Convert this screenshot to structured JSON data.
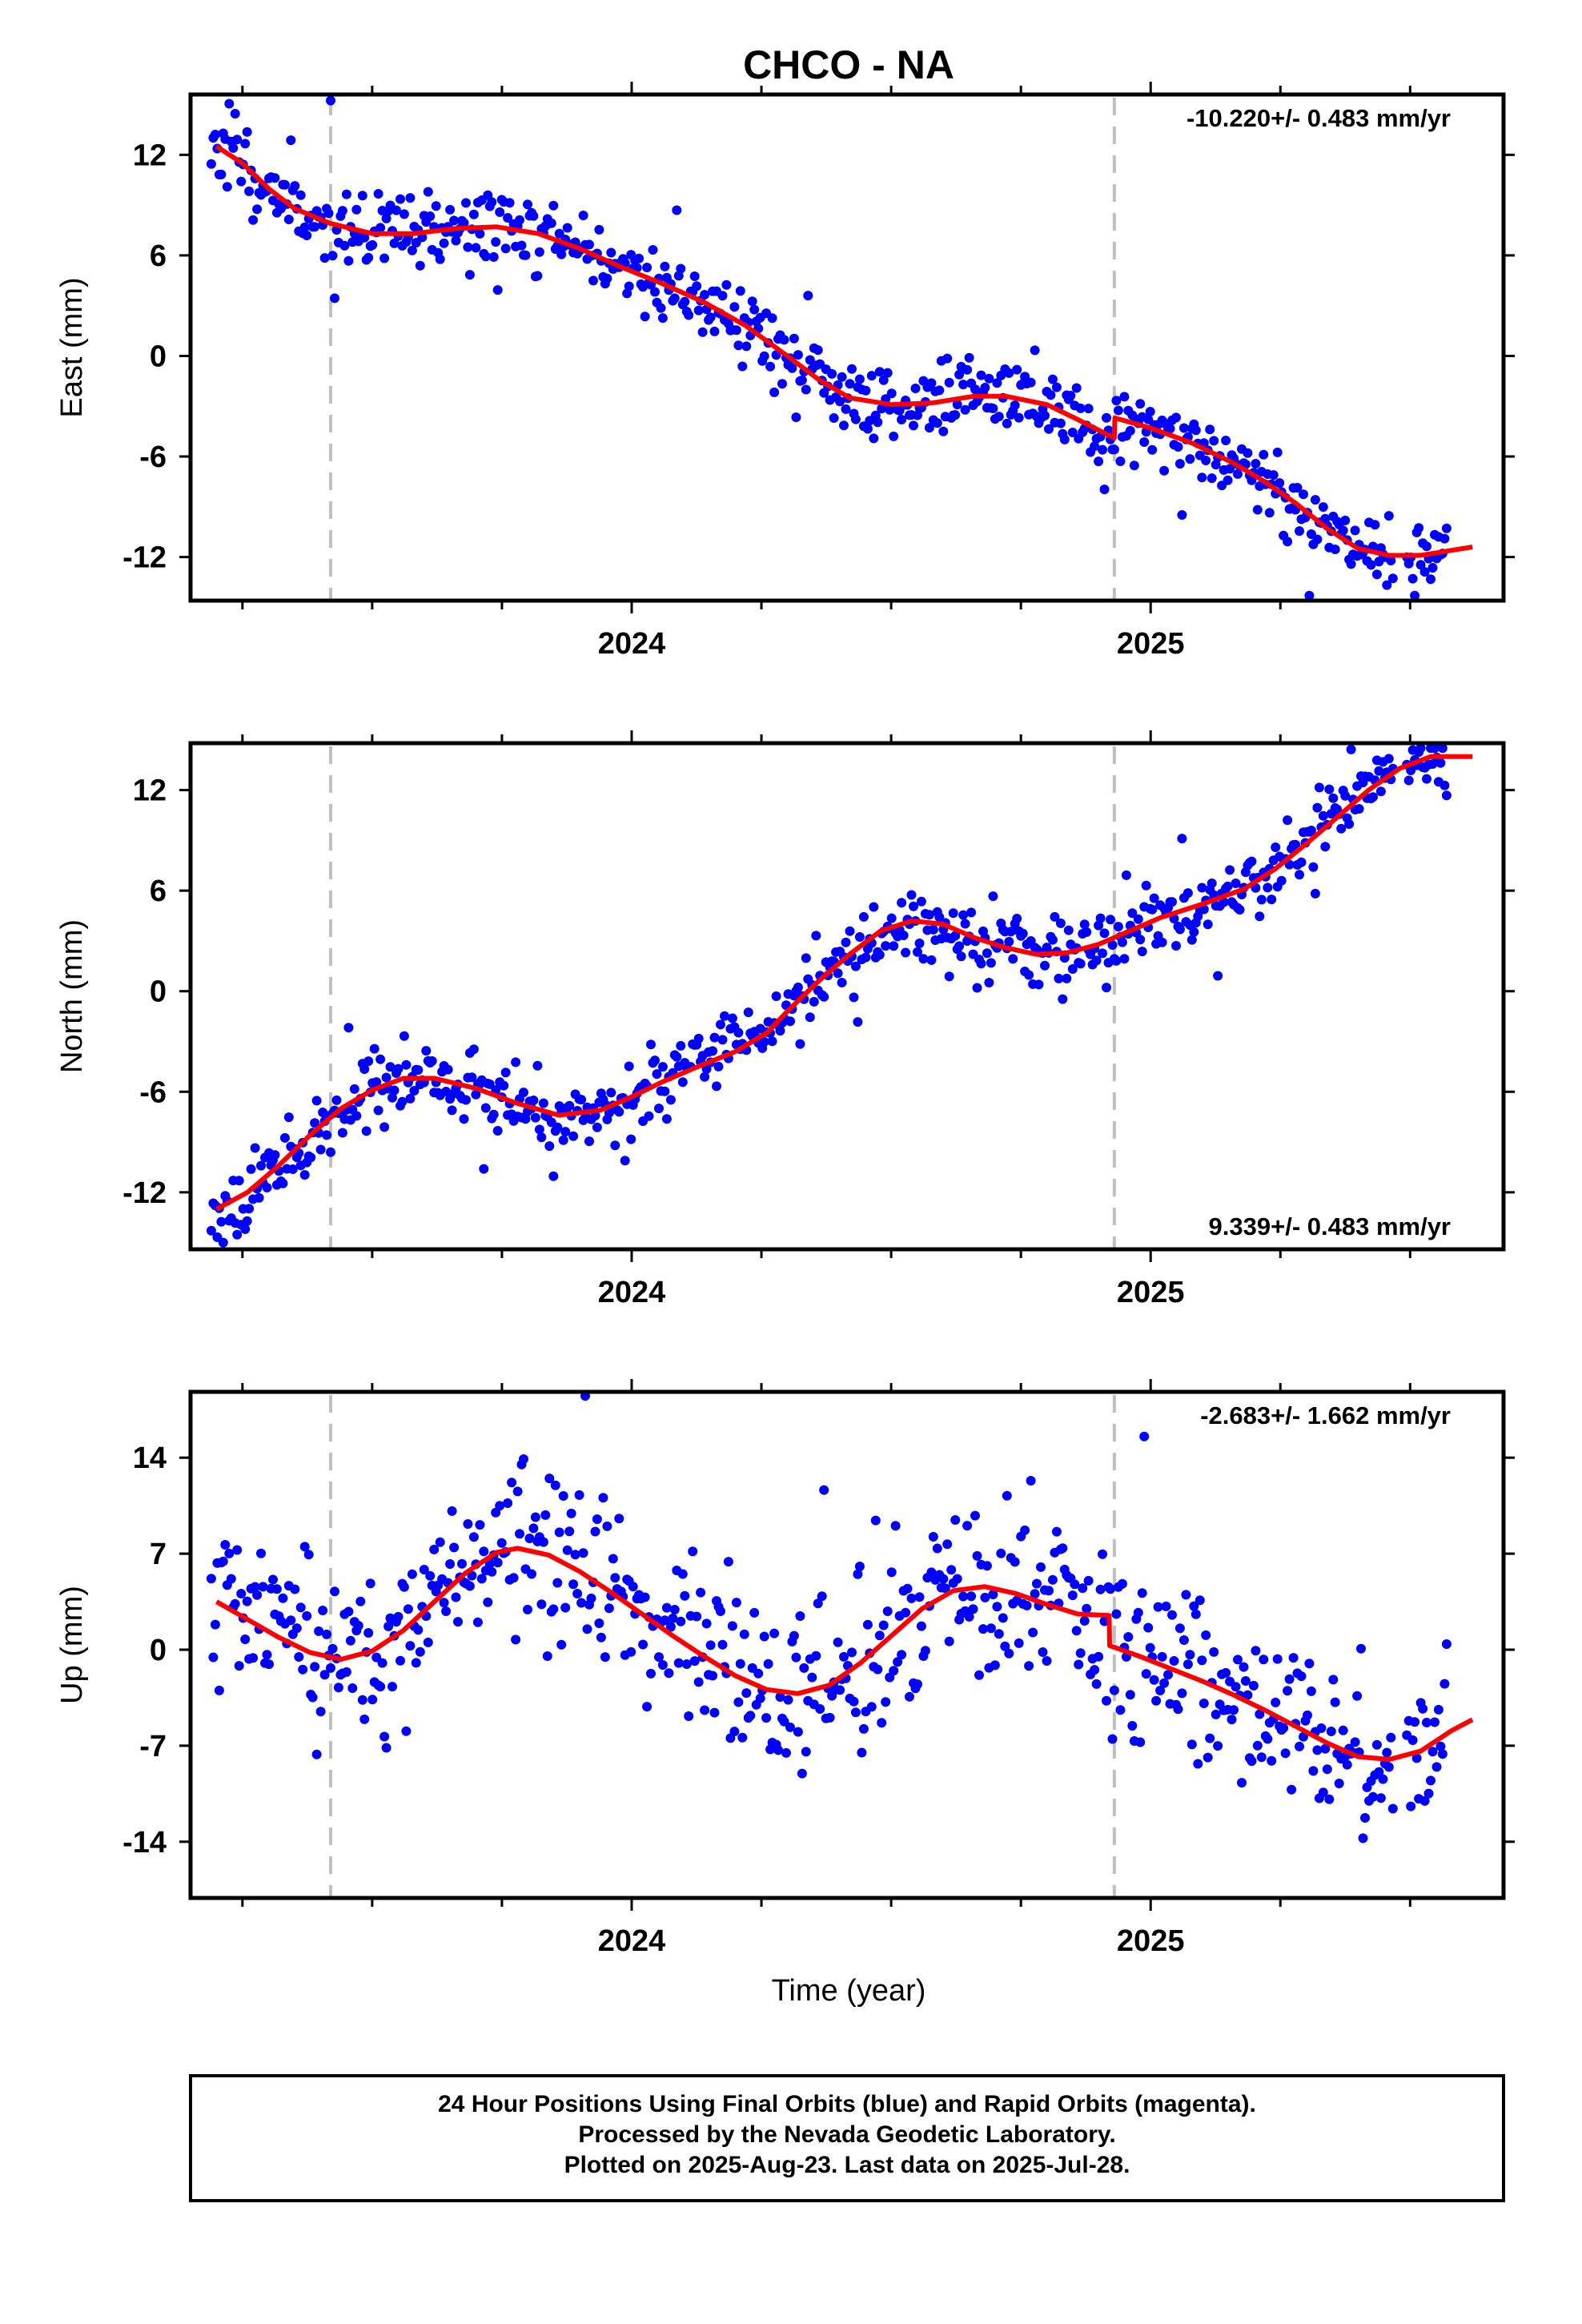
{
  "title": "CHCO - NA",
  "xlabel": "Time (year)",
  "footer": {
    "line1": "24 Hour Positions Using Final Orbits (blue) and Rapid Orbits (magenta).",
    "line2": "Processed by the Nevada Geodetic Laboratory.",
    "line3": "Plotted on 2025-Aug-23. Last data on 2025-Jul-28."
  },
  "colors": {
    "data": "#0000ff",
    "model": "#ff0000",
    "dashed": "#bfbfbf",
    "frame": "#000000"
  },
  "chart_data": [
    {
      "type": "scatter",
      "ylabel": "East (mm)",
      "rate": "-10.220+/- 0.483 mm/yr",
      "rate_position": "top-right",
      "xlim": [
        2023.15,
        2025.68
      ],
      "ylim": [
        -14.6,
        15.6
      ],
      "yticks": [
        12,
        6,
        0,
        -6,
        -12
      ],
      "ytick_labels": [
        "12",
        "6",
        "0",
        "-6",
        "-12"
      ],
      "xtick_labels": [
        "2024",
        "2025"
      ],
      "xticks": [
        2024.0,
        2025.0
      ],
      "offset_lines": [
        2023.42,
        2024.93
      ],
      "model": [
        [
          2023.2,
          12.5
        ],
        [
          2023.25,
          11.5
        ],
        [
          2023.3,
          10.0
        ],
        [
          2023.35,
          8.8
        ],
        [
          2023.42,
          7.9
        ],
        [
          2023.5,
          7.3
        ],
        [
          2023.58,
          7.3
        ],
        [
          2023.66,
          7.6
        ],
        [
          2023.74,
          7.7
        ],
        [
          2023.82,
          7.3
        ],
        [
          2023.9,
          6.4
        ],
        [
          2023.98,
          5.3
        ],
        [
          2024.06,
          4.3
        ],
        [
          2024.14,
          3.2
        ],
        [
          2024.22,
          1.8
        ],
        [
          2024.3,
          0.0
        ],
        [
          2024.36,
          -1.4
        ],
        [
          2024.42,
          -2.5
        ],
        [
          2024.5,
          -2.9
        ],
        [
          2024.58,
          -2.8
        ],
        [
          2024.66,
          -2.4
        ],
        [
          2024.72,
          -2.4
        ],
        [
          2024.8,
          -2.9
        ],
        [
          2024.86,
          -3.8
        ],
        [
          2024.93,
          -4.9
        ],
        [
          2024.931,
          -3.7
        ],
        [
          2025.0,
          -4.3
        ],
        [
          2025.08,
          -5.2
        ],
        [
          2025.16,
          -6.4
        ],
        [
          2025.22,
          -7.5
        ],
        [
          2025.28,
          -8.8
        ],
        [
          2025.34,
          -10.3
        ],
        [
          2025.4,
          -11.5
        ],
        [
          2025.46,
          -11.9
        ],
        [
          2025.52,
          -11.9
        ],
        [
          2025.58,
          -11.6
        ],
        [
          2025.62,
          -11.4
        ]
      ],
      "scatter": {
        "noise": 1.1,
        "outlier_noise": 2.4,
        "seed": 11
      }
    },
    {
      "type": "scatter",
      "ylabel": "North (mm)",
      "rate": "9.339+/- 0.483 mm/yr",
      "rate_position": "bottom-right",
      "xlim": [
        2023.15,
        2025.68
      ],
      "ylim": [
        -15.4,
        14.8
      ],
      "yticks": [
        12,
        6,
        0,
        -6,
        -12
      ],
      "ytick_labels": [
        "12",
        "6",
        "0",
        "-6",
        "-12"
      ],
      "xtick_labels": [
        "2024",
        "2025"
      ],
      "xticks": [
        2024.0,
        2025.0
      ],
      "offset_lines": [
        2023.42,
        2024.93
      ],
      "model": [
        [
          2023.2,
          -13.0
        ],
        [
          2023.26,
          -12.0
        ],
        [
          2023.32,
          -10.4
        ],
        [
          2023.38,
          -8.6
        ],
        [
          2023.44,
          -7.0
        ],
        [
          2023.5,
          -5.9
        ],
        [
          2023.56,
          -5.2
        ],
        [
          2023.62,
          -5.2
        ],
        [
          2023.7,
          -5.8
        ],
        [
          2023.78,
          -6.7
        ],
        [
          2023.86,
          -7.4
        ],
        [
          2023.94,
          -7.1
        ],
        [
          2024.0,
          -6.3
        ],
        [
          2024.06,
          -5.4
        ],
        [
          2024.12,
          -4.6
        ],
        [
          2024.2,
          -3.6
        ],
        [
          2024.26,
          -2.5
        ],
        [
          2024.3,
          -1.2
        ],
        [
          2024.36,
          0.6
        ],
        [
          2024.42,
          2.2
        ],
        [
          2024.48,
          3.6
        ],
        [
          2024.54,
          4.2
        ],
        [
          2024.6,
          4.0
        ],
        [
          2024.66,
          3.2
        ],
        [
          2024.72,
          2.6
        ],
        [
          2024.78,
          2.2
        ],
        [
          2024.84,
          2.3
        ],
        [
          2024.9,
          2.8
        ],
        [
          2024.96,
          3.6
        ],
        [
          2025.02,
          4.4
        ],
        [
          2025.1,
          5.2
        ],
        [
          2025.18,
          6.1
        ],
        [
          2025.24,
          7.3
        ],
        [
          2025.3,
          8.8
        ],
        [
          2025.36,
          10.4
        ],
        [
          2025.42,
          12.0
        ],
        [
          2025.48,
          13.3
        ],
        [
          2025.54,
          14.0
        ],
        [
          2025.62,
          14.0
        ]
      ],
      "scatter": {
        "noise": 1.0,
        "outlier_noise": 2.2,
        "seed": 23
      }
    },
    {
      "type": "scatter",
      "ylabel": "Up (mm)",
      "rate": "-2.683+/- 1.662 mm/yr",
      "rate_position": "top-right",
      "xlim": [
        2023.15,
        2025.68
      ],
      "ylim": [
        -18.1,
        18.8
      ],
      "yticks": [
        14,
        7,
        0,
        -7,
        -14
      ],
      "ytick_labels": [
        "14",
        "7",
        "0",
        "-7",
        "-14"
      ],
      "xtick_labels": [
        "2024",
        "2025"
      ],
      "xticks": [
        2024.0,
        2025.0
      ],
      "offset_lines": [
        2023.42,
        2024.93
      ],
      "model": [
        [
          2023.2,
          3.5
        ],
        [
          2023.26,
          2.2
        ],
        [
          2023.32,
          0.9
        ],
        [
          2023.38,
          -0.2
        ],
        [
          2023.44,
          -0.7
        ],
        [
          2023.5,
          -0.1
        ],
        [
          2023.56,
          1.4
        ],
        [
          2023.62,
          3.5
        ],
        [
          2023.68,
          5.6
        ],
        [
          2023.74,
          7.1
        ],
        [
          2023.78,
          7.4
        ],
        [
          2023.84,
          6.9
        ],
        [
          2023.9,
          5.7
        ],
        [
          2023.96,
          4.2
        ],
        [
          2024.02,
          2.6
        ],
        [
          2024.08,
          1.0
        ],
        [
          2024.14,
          -0.5
        ],
        [
          2024.2,
          -1.9
        ],
        [
          2024.26,
          -2.9
        ],
        [
          2024.32,
          -3.2
        ],
        [
          2024.38,
          -2.6
        ],
        [
          2024.44,
          -1.0
        ],
        [
          2024.5,
          1.0
        ],
        [
          2024.56,
          3.0
        ],
        [
          2024.62,
          4.3
        ],
        [
          2024.68,
          4.6
        ],
        [
          2024.74,
          4.1
        ],
        [
          2024.8,
          3.3
        ],
        [
          2024.86,
          2.6
        ],
        [
          2024.92,
          2.5
        ],
        [
          2024.921,
          0.3
        ],
        [
          2024.98,
          -0.5
        ],
        [
          2025.04,
          -1.4
        ],
        [
          2025.1,
          -2.3
        ],
        [
          2025.16,
          -3.3
        ],
        [
          2025.22,
          -4.4
        ],
        [
          2025.28,
          -5.6
        ],
        [
          2025.34,
          -6.8
        ],
        [
          2025.4,
          -7.8
        ],
        [
          2025.46,
          -8.0
        ],
        [
          2025.52,
          -7.4
        ],
        [
          2025.58,
          -5.9
        ],
        [
          2025.62,
          -5.1
        ]
      ],
      "scatter": {
        "noise": 3.1,
        "outlier_noise": 7.0,
        "seed": 37
      }
    }
  ]
}
